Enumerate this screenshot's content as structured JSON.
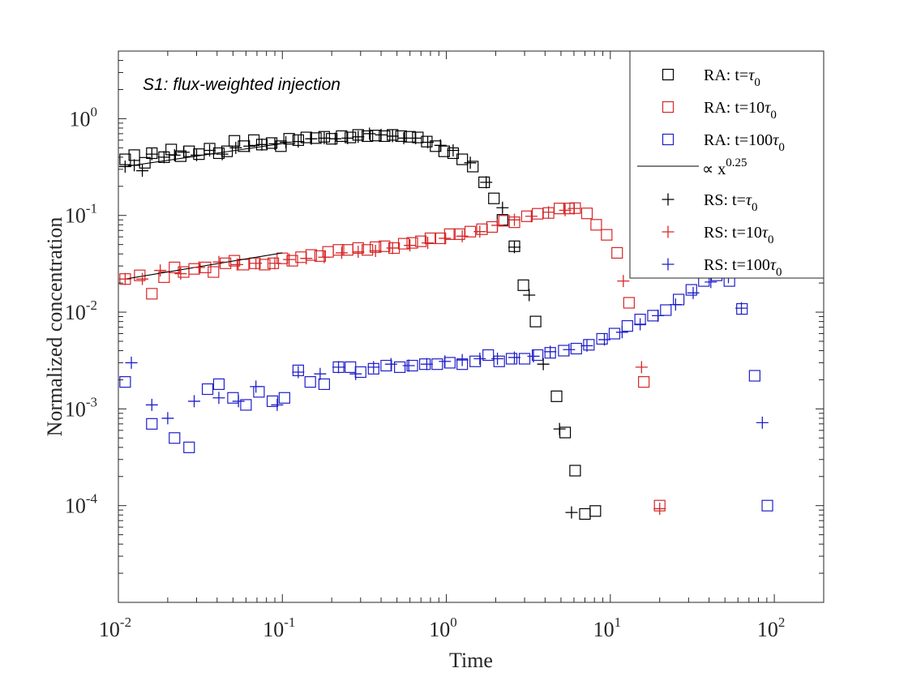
{
  "chart_data": {
    "type": "scatter",
    "xscale": "log",
    "yscale": "log",
    "xlim": [
      0.01,
      200
    ],
    "ylim": [
      1e-05,
      5
    ],
    "xlabel": "Time",
    "ylabel": "Normalized concentration",
    "annotation": "S1: flux-weighted injection",
    "x_ticks": [
      {
        "base": "10",
        "exp": "-2",
        "value": 0.01
      },
      {
        "base": "10",
        "exp": "-1",
        "value": 0.1
      },
      {
        "base": "10",
        "exp": "0",
        "value": 1
      },
      {
        "base": "10",
        "exp": "1",
        "value": 10
      },
      {
        "base": "10",
        "exp": "2",
        "value": 100
      }
    ],
    "y_ticks": [
      {
        "base": "10",
        "exp": "-4",
        "value": 0.0001
      },
      {
        "base": "10",
        "exp": "-3",
        "value": 0.001
      },
      {
        "base": "10",
        "exp": "-2",
        "value": 0.01
      },
      {
        "base": "10",
        "exp": "-1",
        "value": 0.1
      },
      {
        "base": "10",
        "exp": "0",
        "value": 1
      }
    ],
    "legend": {
      "position": "top-right",
      "entries": [
        {
          "prefix": "RA: t=",
          "mult": "",
          "suffix": "τ",
          "sub": "0",
          "marker": "square",
          "color": "#000000"
        },
        {
          "prefix": "RA: t=",
          "mult": "10",
          "suffix": "τ",
          "sub": "0",
          "marker": "square",
          "color": "#d62728"
        },
        {
          "prefix": "RA: t=",
          "mult": "100",
          "suffix": "τ",
          "sub": "0",
          "marker": "square",
          "color": "#1f1fc8"
        },
        {
          "prefix": "∝ x",
          "mult": "",
          "suffix": "",
          "sup": "0.25",
          "marker": "line",
          "color": "#000000"
        },
        {
          "prefix": "RS: t=",
          "mult": "",
          "suffix": "τ",
          "sub": "0",
          "marker": "plus",
          "color": "#000000"
        },
        {
          "prefix": "RS: t=",
          "mult": "10",
          "suffix": "τ",
          "sub": "0",
          "marker": "plus",
          "color": "#d62728"
        },
        {
          "prefix": "RS: t=",
          "mult": "100",
          "suffix": "τ",
          "sub": "0",
          "marker": "plus",
          "color": "#1f1fc8"
        }
      ]
    },
    "series": [
      {
        "name": "RA: t=τ0",
        "marker": "square",
        "color": "#000000",
        "points": [
          [
            0.011,
            0.38
          ],
          [
            0.0125,
            0.42
          ],
          [
            0.0145,
            0.35
          ],
          [
            0.016,
            0.44
          ],
          [
            0.019,
            0.4
          ],
          [
            0.021,
            0.48
          ],
          [
            0.024,
            0.41
          ],
          [
            0.027,
            0.46
          ],
          [
            0.031,
            0.43
          ],
          [
            0.036,
            0.49
          ],
          [
            0.041,
            0.44
          ],
          [
            0.046,
            0.46
          ],
          [
            0.051,
            0.59
          ],
          [
            0.058,
            0.52
          ],
          [
            0.067,
            0.6
          ],
          [
            0.075,
            0.54
          ],
          [
            0.086,
            0.56
          ],
          [
            0.098,
            0.52
          ],
          [
            0.11,
            0.62
          ],
          [
            0.125,
            0.6
          ],
          [
            0.14,
            0.64
          ],
          [
            0.16,
            0.63
          ],
          [
            0.18,
            0.65
          ],
          [
            0.2,
            0.62
          ],
          [
            0.23,
            0.66
          ],
          [
            0.26,
            0.64
          ],
          [
            0.29,
            0.68
          ],
          [
            0.33,
            0.66
          ],
          [
            0.37,
            0.67
          ],
          [
            0.42,
            0.66
          ],
          [
            0.47,
            0.68
          ],
          [
            0.53,
            0.66
          ],
          [
            0.6,
            0.65
          ],
          [
            0.67,
            0.64
          ],
          [
            0.76,
            0.58
          ],
          [
            0.86,
            0.52
          ],
          [
            0.97,
            0.46
          ],
          [
            1.1,
            0.44
          ],
          [
            1.25,
            0.38
          ],
          [
            1.45,
            0.32
          ],
          [
            1.7,
            0.22
          ],
          [
            1.95,
            0.15
          ],
          [
            2.2,
            0.09
          ],
          [
            2.6,
            0.048
          ],
          [
            2.95,
            0.019
          ],
          [
            3.5,
            0.008
          ],
          [
            4.7,
            0.00135
          ],
          [
            5.3,
            0.00057
          ],
          [
            6.1,
            0.00023
          ],
          [
            7.0,
            8.2e-05
          ],
          [
            8.1,
            8.8e-05
          ]
        ]
      },
      {
        "name": "RA: t=10τ0",
        "marker": "square",
        "color": "#d62728",
        "points": [
          [
            0.011,
            0.022
          ],
          [
            0.0135,
            0.024
          ],
          [
            0.016,
            0.0155
          ],
          [
            0.019,
            0.023
          ],
          [
            0.022,
            0.029
          ],
          [
            0.025,
            0.026
          ],
          [
            0.029,
            0.028
          ],
          [
            0.034,
            0.029
          ],
          [
            0.038,
            0.026
          ],
          [
            0.045,
            0.032
          ],
          [
            0.051,
            0.034
          ],
          [
            0.058,
            0.031
          ],
          [
            0.068,
            0.032
          ],
          [
            0.078,
            0.031
          ],
          [
            0.088,
            0.032
          ],
          [
            0.1,
            0.036
          ],
          [
            0.115,
            0.034
          ],
          [
            0.13,
            0.037
          ],
          [
            0.15,
            0.039
          ],
          [
            0.17,
            0.038
          ],
          [
            0.19,
            0.042
          ],
          [
            0.22,
            0.044
          ],
          [
            0.25,
            0.044
          ],
          [
            0.29,
            0.046
          ],
          [
            0.33,
            0.044
          ],
          [
            0.37,
            0.047
          ],
          [
            0.42,
            0.048
          ],
          [
            0.48,
            0.046
          ],
          [
            0.55,
            0.051
          ],
          [
            0.62,
            0.052
          ],
          [
            0.7,
            0.054
          ],
          [
            0.8,
            0.058
          ],
          [
            0.92,
            0.058
          ],
          [
            1.05,
            0.064
          ],
          [
            1.2,
            0.064
          ],
          [
            1.4,
            0.068
          ],
          [
            1.65,
            0.072
          ],
          [
            1.9,
            0.076
          ],
          [
            2.25,
            0.088
          ],
          [
            2.6,
            0.085
          ],
          [
            3.1,
            0.098
          ],
          [
            3.6,
            0.104
          ],
          [
            4.2,
            0.106
          ],
          [
            4.9,
            0.118
          ],
          [
            5.6,
            0.118
          ],
          [
            6.1,
            0.119
          ],
          [
            7.2,
            0.105
          ],
          [
            8.2,
            0.08
          ],
          [
            9.5,
            0.063
          ],
          [
            11.0,
            0.041
          ],
          [
            13.0,
            0.0125
          ],
          [
            16.0,
            0.0019
          ],
          [
            20.0,
            0.0001
          ]
        ]
      },
      {
        "name": "RA: t=100τ0",
        "marker": "square",
        "color": "#1f1fc8",
        "points": [
          [
            0.011,
            0.0019
          ],
          [
            0.016,
            0.0007
          ],
          [
            0.022,
            0.0005
          ],
          [
            0.027,
            0.0004
          ],
          [
            0.035,
            0.0016
          ],
          [
            0.041,
            0.0018
          ],
          [
            0.05,
            0.0013
          ],
          [
            0.06,
            0.0011
          ],
          [
            0.072,
            0.0015
          ],
          [
            0.087,
            0.0012
          ],
          [
            0.103,
            0.0013
          ],
          [
            0.125,
            0.0025
          ],
          [
            0.148,
            0.0019
          ],
          [
            0.18,
            0.0018
          ],
          [
            0.22,
            0.0027
          ],
          [
            0.26,
            0.0027
          ],
          [
            0.3,
            0.0024
          ],
          [
            0.36,
            0.0026
          ],
          [
            0.43,
            0.0028
          ],
          [
            0.52,
            0.0027
          ],
          [
            0.62,
            0.0028
          ],
          [
            0.74,
            0.0029
          ],
          [
            0.88,
            0.0029
          ],
          [
            1.05,
            0.003
          ],
          [
            1.25,
            0.0029
          ],
          [
            1.5,
            0.0031
          ],
          [
            1.8,
            0.0036
          ],
          [
            2.1,
            0.0031
          ],
          [
            2.5,
            0.0033
          ],
          [
            3.0,
            0.0033
          ],
          [
            3.6,
            0.0036
          ],
          [
            4.3,
            0.0038
          ],
          [
            5.2,
            0.004
          ],
          [
            6.2,
            0.0042
          ],
          [
            7.4,
            0.0046
          ],
          [
            8.9,
            0.0053
          ],
          [
            10.6,
            0.006
          ],
          [
            12.7,
            0.0072
          ],
          [
            15.2,
            0.0084
          ],
          [
            18.2,
            0.0092
          ],
          [
            21.8,
            0.0105
          ],
          [
            26.1,
            0.0135
          ],
          [
            31.2,
            0.017
          ],
          [
            37.2,
            0.021
          ],
          [
            44.5,
            0.024
          ],
          [
            53.2,
            0.021
          ],
          [
            63.5,
            0.0108
          ],
          [
            75.9,
            0.0022
          ],
          [
            90.7,
            0.0001
          ]
        ]
      },
      {
        "name": "∝ x^0.25",
        "marker": "line",
        "color": "#000000",
        "segments": [
          [
            [
              0.011,
              0.32
            ],
            [
              0.105,
              0.56
            ]
          ],
          [
            [
              0.011,
              0.022
            ],
            [
              0.1,
              0.041
            ]
          ]
        ]
      },
      {
        "name": "RS: t=τ0",
        "marker": "plus",
        "color": "#000000",
        "points": [
          [
            0.011,
            0.32
          ],
          [
            0.0125,
            0.33
          ],
          [
            0.014,
            0.29
          ],
          [
            0.016,
            0.43
          ],
          [
            0.019,
            0.4
          ],
          [
            0.022,
            0.42
          ],
          [
            0.025,
            0.45
          ],
          [
            0.03,
            0.42
          ],
          [
            0.036,
            0.47
          ],
          [
            0.043,
            0.43
          ],
          [
            0.052,
            0.5
          ],
          [
            0.063,
            0.52
          ],
          [
            0.075,
            0.54
          ],
          [
            0.09,
            0.55
          ],
          [
            0.105,
            0.57
          ],
          [
            0.125,
            0.58
          ],
          [
            0.15,
            0.62
          ],
          [
            0.18,
            0.63
          ],
          [
            0.21,
            0.62
          ],
          [
            0.25,
            0.63
          ],
          [
            0.29,
            0.65
          ],
          [
            0.34,
            0.7
          ],
          [
            0.4,
            0.68
          ],
          [
            0.47,
            0.66
          ],
          [
            0.55,
            0.63
          ],
          [
            0.65,
            0.63
          ],
          [
            0.77,
            0.57
          ],
          [
            0.92,
            0.53
          ],
          [
            1.1,
            0.47
          ],
          [
            1.4,
            0.35
          ],
          [
            1.75,
            0.22
          ],
          [
            2.2,
            0.12
          ],
          [
            2.6,
            0.047
          ],
          [
            3.2,
            0.015
          ],
          [
            3.9,
            0.0029
          ],
          [
            4.9,
            0.00062
          ],
          [
            5.8,
            8.5e-05
          ]
        ]
      },
      {
        "name": "RS: t=10τ0",
        "marker": "plus",
        "color": "#d62728",
        "points": [
          [
            0.011,
            0.022
          ],
          [
            0.014,
            0.022
          ],
          [
            0.018,
            0.027
          ],
          [
            0.024,
            0.025
          ],
          [
            0.031,
            0.029
          ],
          [
            0.041,
            0.033
          ],
          [
            0.053,
            0.031
          ],
          [
            0.069,
            0.032
          ],
          [
            0.09,
            0.032
          ],
          [
            0.11,
            0.035
          ],
          [
            0.14,
            0.036
          ],
          [
            0.18,
            0.037
          ],
          [
            0.23,
            0.041
          ],
          [
            0.29,
            0.042
          ],
          [
            0.37,
            0.043
          ],
          [
            0.47,
            0.046
          ],
          [
            0.6,
            0.049
          ],
          [
            0.77,
            0.052
          ],
          [
            0.98,
            0.058
          ],
          [
            1.25,
            0.061
          ],
          [
            1.6,
            0.068
          ],
          [
            2.05,
            0.079
          ],
          [
            2.6,
            0.09
          ],
          [
            3.3,
            0.098
          ],
          [
            4.2,
            0.108
          ],
          [
            5.3,
            0.113
          ],
          [
            6.0,
            0.118
          ],
          [
            12.0,
            0.021
          ],
          [
            15.5,
            0.0027
          ],
          [
            20.0,
            9.3e-05
          ]
        ]
      },
      {
        "name": "RS: t=100τ0",
        "marker": "plus",
        "color": "#1f1fc8",
        "points": [
          [
            0.012,
            0.003
          ],
          [
            0.016,
            0.0011
          ],
          [
            0.02,
            0.0008
          ],
          [
            0.029,
            0.0012
          ],
          [
            0.041,
            0.0013
          ],
          [
            0.054,
            0.0012
          ],
          [
            0.069,
            0.0017
          ],
          [
            0.093,
            0.0011
          ],
          [
            0.125,
            0.0024
          ],
          [
            0.17,
            0.0023
          ],
          [
            0.22,
            0.0027
          ],
          [
            0.28,
            0.0023
          ],
          [
            0.36,
            0.0027
          ],
          [
            0.46,
            0.0029
          ],
          [
            0.59,
            0.0028
          ],
          [
            0.76,
            0.0029
          ],
          [
            0.98,
            0.0031
          ],
          [
            1.25,
            0.0032
          ],
          [
            1.6,
            0.0033
          ],
          [
            2.05,
            0.0033
          ],
          [
            2.6,
            0.0034
          ],
          [
            3.4,
            0.0035
          ],
          [
            4.3,
            0.0039
          ],
          [
            5.6,
            0.0041
          ],
          [
            7.2,
            0.0045
          ],
          [
            9.2,
            0.0052
          ],
          [
            11.8,
            0.0062
          ],
          [
            15.2,
            0.0075
          ],
          [
            19.5,
            0.0092
          ],
          [
            25.0,
            0.012
          ],
          [
            32.0,
            0.0158
          ],
          [
            41.0,
            0.0205
          ],
          [
            52.5,
            0.023
          ],
          [
            63.0,
            0.011
          ],
          [
            84.5,
            0.00072
          ]
        ]
      }
    ]
  }
}
